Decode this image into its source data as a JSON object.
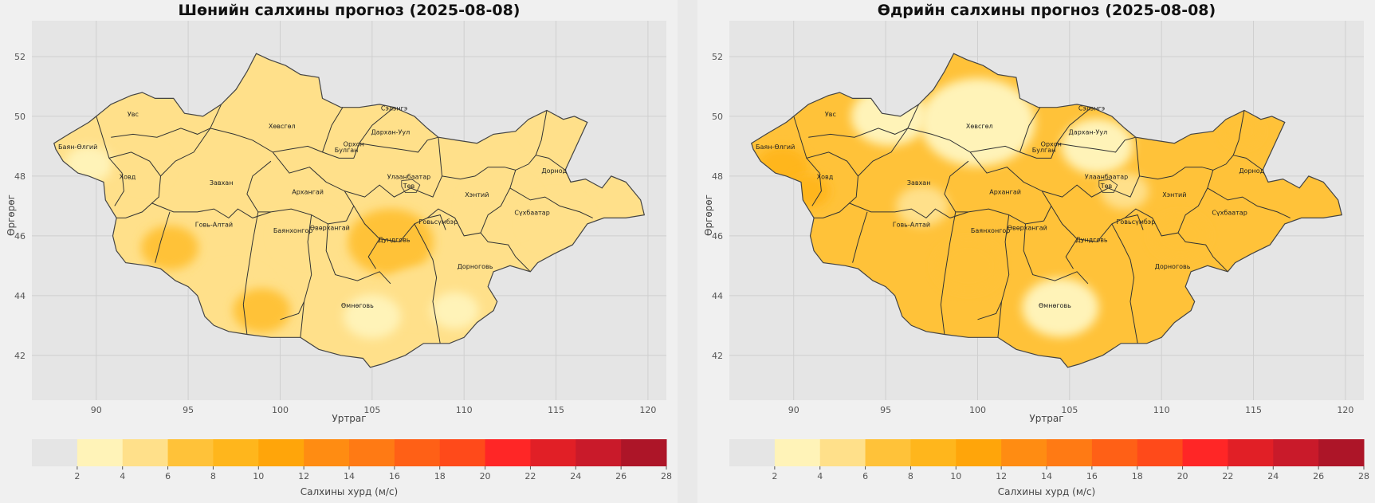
{
  "panels": [
    {
      "id": "night",
      "title": "Шөнийн салхины прогноз (2025-08-08)",
      "xlabel": "Уртраг",
      "ylabel": "Өргөрөг",
      "background_fill": "#ffe08a",
      "zones": [
        {
          "lon": 89.6,
          "lat": 48.4,
          "r": 1.0,
          "level": 1
        },
        {
          "lon": 94.0,
          "lat": 45.6,
          "r": 1.2,
          "level": 3
        },
        {
          "lon": 92.5,
          "lat": 48.3,
          "r": 1.1,
          "level": 2
        },
        {
          "lon": 97.5,
          "lat": 44.0,
          "r": 1.6,
          "level": 2
        },
        {
          "lon": 99.0,
          "lat": 43.5,
          "r": 1.2,
          "level": 3
        },
        {
          "lon": 106.0,
          "lat": 45.8,
          "r": 1.8,
          "level": 3
        },
        {
          "lon": 107.5,
          "lat": 44.0,
          "r": 1.5,
          "level": 2
        },
        {
          "lon": 112.0,
          "lat": 47.0,
          "r": 1.6,
          "level": 2
        },
        {
          "lon": 115.0,
          "lat": 46.5,
          "r": 1.4,
          "level": 2
        },
        {
          "lon": 114.5,
          "lat": 49.6,
          "r": 0.9,
          "level": 2
        },
        {
          "lon": 101.5,
          "lat": 46.0,
          "r": 1.4,
          "level": 2
        },
        {
          "lon": 105.0,
          "lat": 43.3,
          "r": 1.2,
          "level": 1
        },
        {
          "lon": 109.5,
          "lat": 43.5,
          "r": 1.0,
          "level": 1
        }
      ]
    },
    {
      "id": "day",
      "title": "Өдрийн салхины прогноз (2025-08-08)",
      "xlabel": "Уртраг",
      "ylabel": "Өргөрөг",
      "background_fill": "#ffc239",
      "zones": [
        {
          "lon": 89.4,
          "lat": 48.3,
          "r": 1.1,
          "level": 4
        },
        {
          "lon": 90.8,
          "lat": 47.5,
          "r": 0.9,
          "level": 4
        },
        {
          "lon": 100.0,
          "lat": 49.8,
          "r": 2.4,
          "level": 1
        },
        {
          "lon": 95.2,
          "lat": 50.0,
          "r": 1.6,
          "level": 1
        },
        {
          "lon": 106.5,
          "lat": 49.0,
          "r": 1.5,
          "level": 1
        },
        {
          "lon": 104.5,
          "lat": 43.6,
          "r": 1.6,
          "level": 1
        },
        {
          "lon": 99.5,
          "lat": 45.0,
          "r": 1.4,
          "level": 3
        },
        {
          "lon": 111.0,
          "lat": 46.0,
          "r": 1.2,
          "level": 3
        },
        {
          "lon": 114.4,
          "lat": 49.5,
          "r": 0.8,
          "level": 3
        },
        {
          "lon": 97.0,
          "lat": 47.0,
          "r": 1.1,
          "level": 2
        },
        {
          "lon": 108.0,
          "lat": 47.5,
          "r": 1.0,
          "level": 2
        }
      ]
    }
  ],
  "axes": {
    "xlim": [
      86.5,
      121.0
    ],
    "ylim": [
      40.5,
      53.2
    ],
    "xticks": [
      90,
      95,
      100,
      105,
      110,
      115,
      120
    ],
    "yticks": [
      42,
      44,
      46,
      48,
      50,
      52
    ],
    "grid": true
  },
  "colorbar": {
    "label": "Салхины хурд (м/с)",
    "bounds": [
      0,
      2,
      4,
      6,
      8,
      10,
      12,
      14,
      16,
      18,
      20,
      22,
      24,
      26,
      28
    ],
    "tick_labels": [
      "2",
      "4",
      "6",
      "8",
      "10",
      "12",
      "14",
      "16",
      "18",
      "20",
      "22",
      "24",
      "26",
      "28"
    ],
    "colors": [
      "#e5e5e5",
      "#fff3b8",
      "#ffe08a",
      "#ffc239",
      "#ffb61c",
      "#ffa50a",
      "#ff8c12",
      "#ff7a14",
      "#ff6016",
      "#ff4a1a",
      "#ff2626",
      "#e11f26",
      "#c91a2a",
      "#ad1528"
    ]
  },
  "provinces": [
    {
      "name": "Баян-Өлгий",
      "lon": 89.0,
      "lat": 48.9
    },
    {
      "name": "Увс",
      "lon": 92.0,
      "lat": 50.0
    },
    {
      "name": "Ховд",
      "lon": 91.7,
      "lat": 47.9
    },
    {
      "name": "Завхан",
      "lon": 96.8,
      "lat": 47.7
    },
    {
      "name": "Говь-Алтай",
      "lon": 96.4,
      "lat": 46.3
    },
    {
      "name": "Хөвсгөл",
      "lon": 100.1,
      "lat": 49.6
    },
    {
      "name": "Архангай",
      "lon": 101.5,
      "lat": 47.4
    },
    {
      "name": "Баянхонгор",
      "lon": 100.7,
      "lat": 46.1
    },
    {
      "name": "Өвөрхангай",
      "lon": 102.7,
      "lat": 46.2
    },
    {
      "name": "Булган",
      "lon": 103.6,
      "lat": 48.8
    },
    {
      "name": "Орхон",
      "lon": 104.0,
      "lat": 49.0
    },
    {
      "name": "Сэлэнгэ",
      "lon": 106.2,
      "lat": 50.2
    },
    {
      "name": "Дархан-Уул",
      "lon": 106.0,
      "lat": 49.4
    },
    {
      "name": "Улаанбаатар",
      "lon": 107.0,
      "lat": 47.9
    },
    {
      "name": "Төв",
      "lon": 107.0,
      "lat": 47.6
    },
    {
      "name": "Дундговь",
      "lon": 106.2,
      "lat": 45.8
    },
    {
      "name": "Говьсүмбэр",
      "lon": 108.6,
      "lat": 46.4
    },
    {
      "name": "Хэнтий",
      "lon": 110.7,
      "lat": 47.3
    },
    {
      "name": "Дорнод",
      "lon": 114.9,
      "lat": 48.1
    },
    {
      "name": "Сүхбаатар",
      "lon": 113.7,
      "lat": 46.7
    },
    {
      "name": "Дорноговь",
      "lon": 110.6,
      "lat": 44.9
    },
    {
      "name": "Өмнөговь",
      "lon": 104.2,
      "lat": 43.6
    }
  ]
}
